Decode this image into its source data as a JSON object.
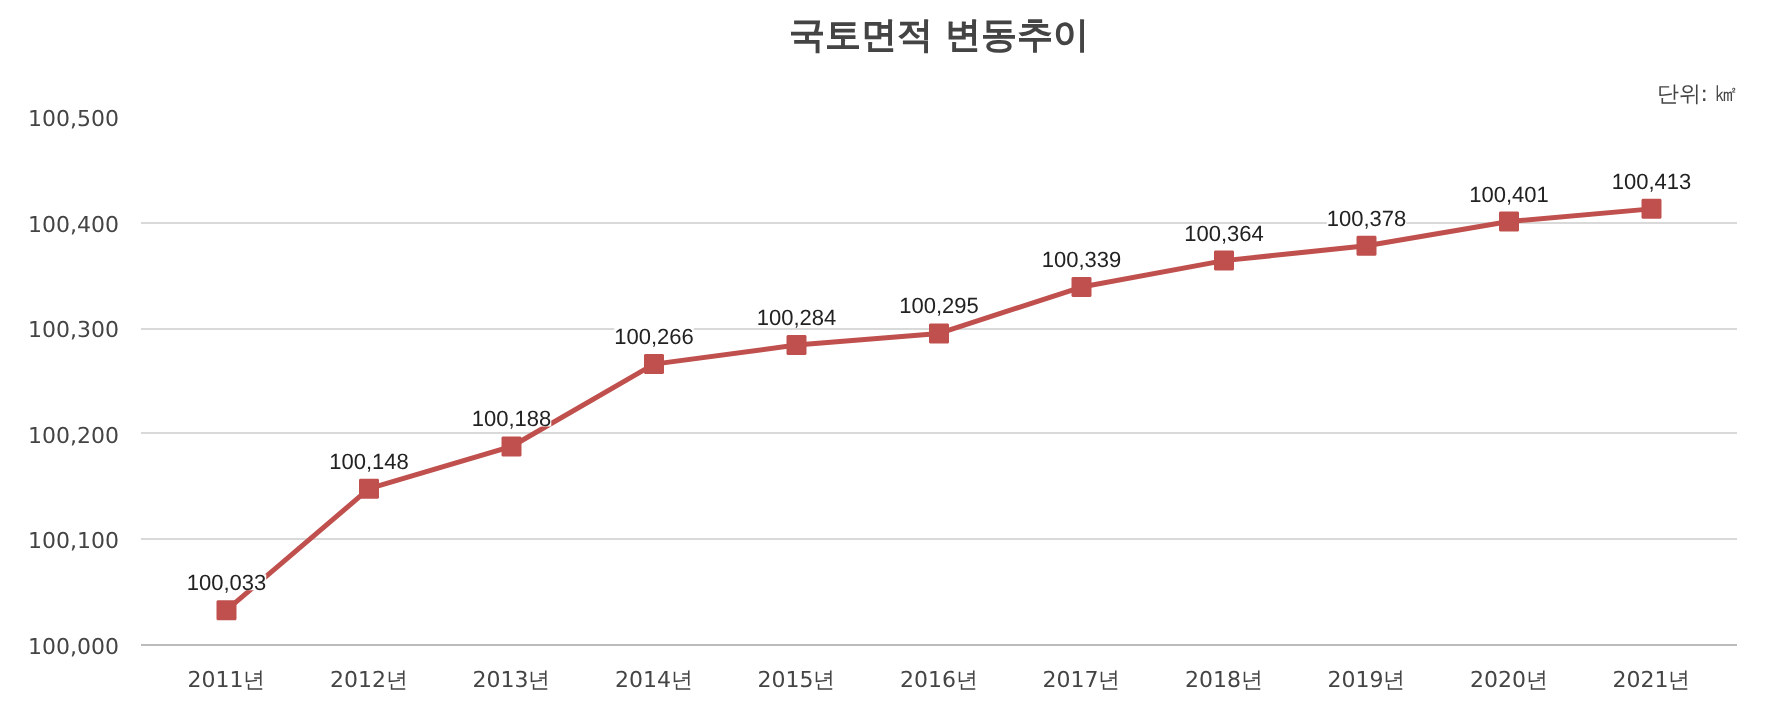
{
  "chart_data": {
    "type": "line",
    "title": "국토면적 변동추이",
    "annotations": [
      "단위: ㎢"
    ],
    "categories": [
      "2011년",
      "2012년",
      "2013년",
      "2014년",
      "2015년",
      "2016년",
      "2017년",
      "2018년",
      "2019년",
      "2020년",
      "2021년"
    ],
    "series": [
      {
        "color": "#c0504d",
        "values": [
          100033,
          100148,
          100188,
          100266,
          100284,
          100295,
          100339,
          100364,
          100378,
          100401,
          100413
        ]
      }
    ],
    "ylim": [
      100000,
      100500
    ],
    "yticks": [
      {
        "value": 100000,
        "label": "100,000"
      },
      {
        "value": 100100,
        "label": "100,100"
      },
      {
        "value": 100200,
        "label": "100,200"
      },
      {
        "value": 100300,
        "label": "100,300"
      },
      {
        "value": 100400,
        "label": "100,400"
      },
      {
        "value": 100500,
        "label": "100,500"
      }
    ],
    "value_labels": [
      "100,033",
      "100,148",
      "100,188",
      "100,266",
      "100,284",
      "100,295",
      "100,339",
      "100,364",
      "100,378",
      "100,401",
      "100,413"
    ],
    "grid": "y",
    "marker": "square",
    "line_style": "solid"
  }
}
